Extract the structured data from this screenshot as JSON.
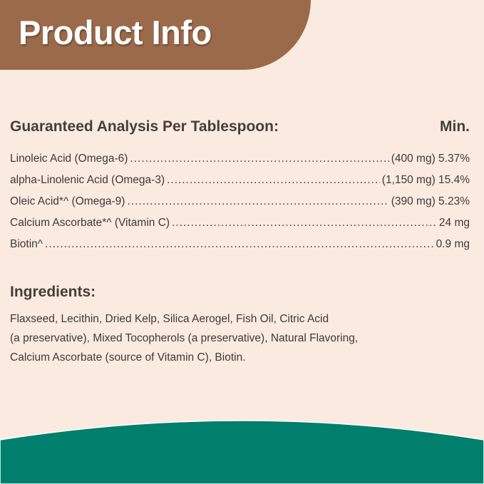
{
  "title": "Product Info",
  "analysis": {
    "heading": "Guaranteed Analysis Per Tablespoon:",
    "min_label": "Min.",
    "rows": [
      {
        "name": "Linoleic Acid (Omega-6)",
        "value": "(400 mg) 5.37%"
      },
      {
        "name": "alpha-Linolenic Acid (Omega-3)",
        "value": "(1,150 mg) 15.4%"
      },
      {
        "name": "Oleic Acid*^ (Omega-9)",
        "value": "(390 mg) 5.23%"
      },
      {
        "name": "Calcium Ascorbate*^ (Vitamin C)",
        "value": "24 mg"
      },
      {
        "name": "Biotin^",
        "value": "0.9 mg"
      }
    ]
  },
  "ingredients": {
    "heading": "Ingredients:",
    "lines": [
      "Flaxseed, Lecithin, Dried Kelp, Silica Aerogel, Fish Oil, Citric Acid",
      "(a preservative), Mixed Tocopherols (a preservative), Natural Flavoring,",
      "Calcium Ascorbate (source of Vitamin C), Biotin."
    ]
  },
  "colors": {
    "banner": "#9b6a4a",
    "background": "#fbeae0",
    "footer": "#007f6d"
  }
}
